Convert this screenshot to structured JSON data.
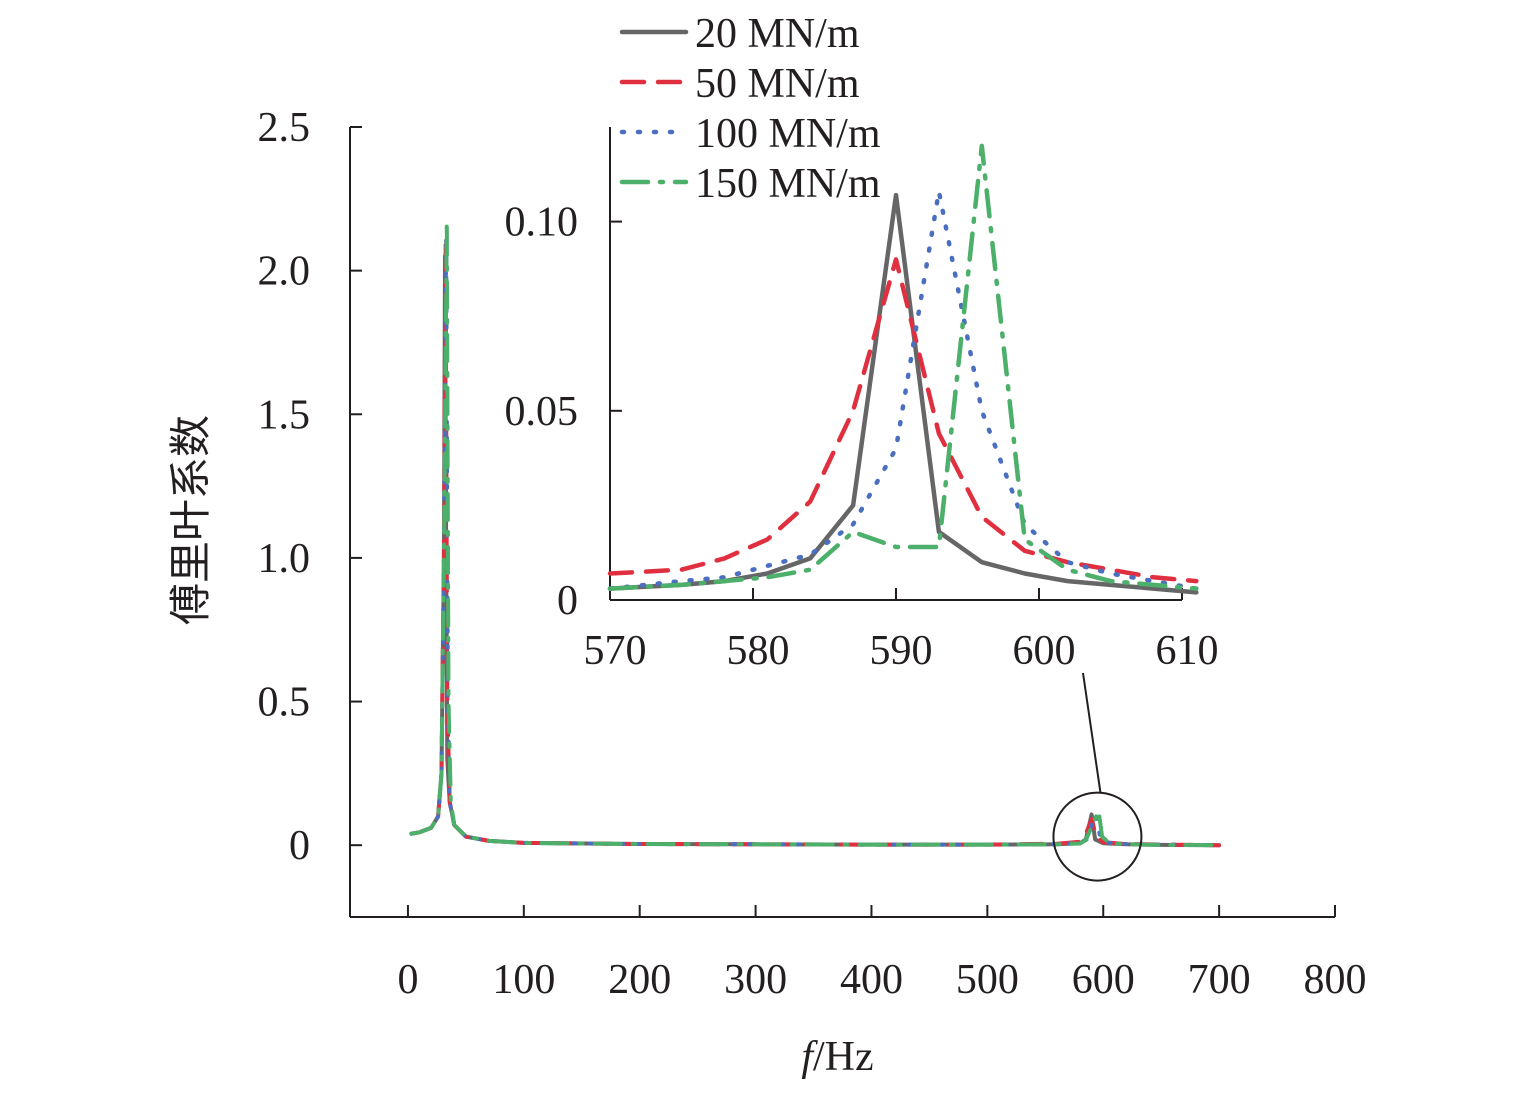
{
  "chart_data": [
    {
      "type": "line",
      "xlabel": "f/Hz",
      "xlabel_italic_part": "f",
      "xlabel_rest": "/Hz",
      "ylabel": "傅里叶系数",
      "xlim": [
        -50,
        800
      ],
      "ylim": [
        -0.25,
        2.5
      ],
      "xticks": [
        0,
        100,
        200,
        300,
        400,
        500,
        600,
        700,
        800
      ],
      "xtick_labels": [
        "0",
        "100",
        "200",
        "300",
        "400",
        "500",
        "600",
        "700",
        "800"
      ],
      "yticks": [
        0,
        0.5,
        1.0,
        1.5,
        2.0,
        2.5
      ],
      "ytick_labels": [
        "0",
        "0.5",
        "1.0",
        "1.5",
        "2.0",
        "2.5"
      ],
      "grid": false,
      "legend_position": "top",
      "series": [
        {
          "name": "20 MN/m",
          "color": "#666666",
          "style": "solid",
          "x": [
            3,
            10,
            20,
            26,
            29,
            31,
            32,
            33,
            34,
            36,
            40,
            50,
            70,
            100,
            200,
            300,
            400,
            500,
            560,
            580,
            585,
            590,
            593,
            600,
            620,
            650,
            700
          ],
          "y": [
            0.04,
            0.045,
            0.06,
            0.1,
            0.25,
            1.0,
            2.05,
            1.0,
            0.3,
            0.15,
            0.07,
            0.03,
            0.015,
            0.008,
            0.004,
            0.003,
            0.002,
            0.002,
            0.003,
            0.007,
            0.02,
            0.107,
            0.02,
            0.007,
            0.003,
            0.001,
            0.0
          ]
        },
        {
          "name": "50 MN/m",
          "color": "#e03040",
          "style": "dashed",
          "x": [
            3,
            10,
            20,
            26,
            29,
            31,
            32.5,
            34,
            36,
            40,
            50,
            70,
            100,
            200,
            300,
            400,
            500,
            560,
            580,
            585,
            590,
            594,
            600,
            620,
            650,
            700
          ],
          "y": [
            0.04,
            0.045,
            0.06,
            0.1,
            0.25,
            1.0,
            2.1,
            0.5,
            0.15,
            0.07,
            0.03,
            0.015,
            0.008,
            0.004,
            0.003,
            0.002,
            0.002,
            0.005,
            0.012,
            0.04,
            0.09,
            0.03,
            0.01,
            0.004,
            0.002,
            0.0
          ]
        },
        {
          "name": "100 MN/m",
          "color": "#4a6ec0",
          "style": "dotted",
          "x": [
            3,
            10,
            20,
            26,
            29,
            31,
            33,
            34.5,
            36,
            40,
            50,
            70,
            100,
            200,
            300,
            400,
            500,
            560,
            580,
            586,
            593,
            598,
            600,
            620,
            650,
            700
          ],
          "y": [
            0.04,
            0.045,
            0.06,
            0.1,
            0.25,
            1.0,
            2.12,
            0.5,
            0.15,
            0.07,
            0.03,
            0.015,
            0.008,
            0.004,
            0.003,
            0.002,
            0.002,
            0.003,
            0.008,
            0.02,
            0.108,
            0.02,
            0.01,
            0.004,
            0.002,
            0.0
          ]
        },
        {
          "name": "150 MN/m",
          "color": "#4caf6a",
          "style": "dashdot",
          "x": [
            3,
            10,
            20,
            26,
            29,
            31,
            33.5,
            35,
            37,
            40,
            50,
            70,
            100,
            200,
            300,
            400,
            500,
            560,
            580,
            585,
            596,
            599,
            605,
            620,
            650,
            700
          ],
          "y": [
            0.04,
            0.045,
            0.06,
            0.1,
            0.25,
            1.0,
            2.17,
            0.5,
            0.15,
            0.07,
            0.03,
            0.015,
            0.008,
            0.004,
            0.003,
            0.002,
            0.002,
            0.003,
            0.006,
            0.018,
            0.12,
            0.03,
            0.008,
            0.003,
            0.001,
            0.0
          ]
        }
      ],
      "annotation": {
        "type": "circle",
        "center": [
          595,
          0.03
        ]
      }
    },
    {
      "type": "line",
      "role": "inset",
      "xlim": [
        570,
        610
      ],
      "ylim": [
        0,
        0.125
      ],
      "xticks": [
        570,
        580,
        590,
        600,
        610
      ],
      "xtick_labels": [
        "570",
        "580",
        "590",
        "600",
        "610"
      ],
      "yticks": [
        0,
        0.05,
        0.1
      ],
      "ytick_labels": [
        "0",
        "0.05",
        "0.10"
      ],
      "grid": false,
      "series": [
        {
          "name": "20 MN/m",
          "color": "#666666",
          "style": "solid",
          "x": [
            570,
            575,
            578,
            581,
            584,
            587,
            590,
            593,
            596,
            599,
            602,
            605,
            608,
            611
          ],
          "y": [
            0.003,
            0.004,
            0.005,
            0.007,
            0.011,
            0.025,
            0.107,
            0.018,
            0.01,
            0.007,
            0.005,
            0.004,
            0.003,
            0.002
          ]
        },
        {
          "name": "50 MN/m",
          "color": "#e03040",
          "style": "dashed",
          "x": [
            570,
            575,
            578,
            581,
            584,
            587,
            590,
            593,
            596,
            599,
            602,
            605,
            608,
            611
          ],
          "y": [
            0.007,
            0.008,
            0.011,
            0.016,
            0.026,
            0.05,
            0.09,
            0.044,
            0.022,
            0.013,
            0.01,
            0.008,
            0.006,
            0.005
          ]
        },
        {
          "name": "100 MN/m",
          "color": "#4a6ec0",
          "style": "dotted",
          "x": [
            570,
            575,
            578,
            581,
            584,
            587,
            590,
            593,
            596,
            599,
            602,
            605,
            608,
            611
          ],
          "y": [
            0.003,
            0.005,
            0.006,
            0.009,
            0.012,
            0.02,
            0.04,
            0.108,
            0.05,
            0.02,
            0.01,
            0.007,
            0.005,
            0.003
          ]
        },
        {
          "name": "150 MN/m",
          "color": "#4caf6a",
          "style": "dashdot",
          "x": [
            570,
            575,
            578,
            581,
            584,
            587,
            590,
            593,
            596,
            599,
            602,
            605,
            608,
            611
          ],
          "y": [
            0.003,
            0.004,
            0.005,
            0.006,
            0.008,
            0.018,
            0.014,
            0.014,
            0.12,
            0.016,
            0.008,
            0.005,
            0.004,
            0.003
          ]
        }
      ]
    }
  ]
}
